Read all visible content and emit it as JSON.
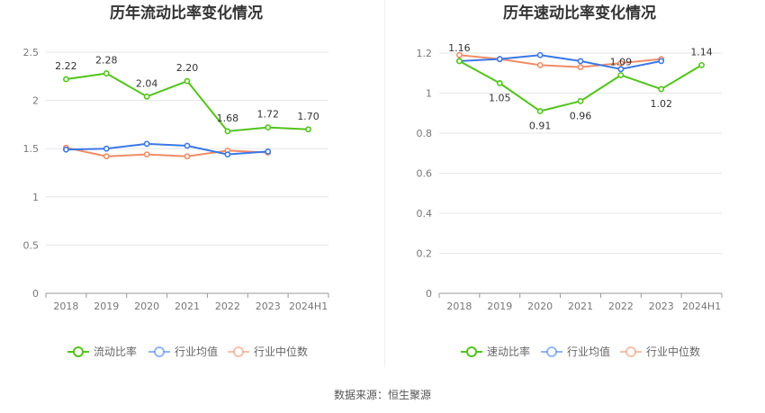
{
  "source_text": "数据来源：恒生聚源",
  "chart_data": [
    {
      "type": "line",
      "title": "历年流动比率变化情况",
      "categories": [
        "2018",
        "2019",
        "2020",
        "2021",
        "2022",
        "2023",
        "2024H1"
      ],
      "ylim": [
        0,
        2.5
      ],
      "yticks": [
        "0",
        "0.5",
        "1",
        "1.5",
        "2",
        "2.5"
      ],
      "grid": true,
      "legend_position": "bottom-center",
      "series": [
        {
          "name": "流动比率",
          "color": "#52c41a",
          "values": [
            2.22,
            2.28,
            2.04,
            2.2,
            1.68,
            1.72,
            1.7
          ],
          "labels": [
            "2.22",
            "2.28",
            "2.04",
            "2.20",
            "1.68",
            "1.72",
            "1.70"
          ]
        },
        {
          "name": "行业均值",
          "color": "#3b78e7",
          "values": [
            1.49,
            1.5,
            1.55,
            1.53,
            1.44,
            1.47,
            null
          ]
        },
        {
          "name": "行业中位数",
          "color": "#f08c66",
          "values": [
            1.51,
            1.42,
            1.44,
            1.42,
            1.48,
            1.46,
            null
          ]
        }
      ]
    },
    {
      "type": "line",
      "title": "历年速动比率变化情况",
      "categories": [
        "2018",
        "2019",
        "2020",
        "2021",
        "2022",
        "2023",
        "2024H1"
      ],
      "ylim": [
        0,
        1.2
      ],
      "yticks": [
        "0",
        "0.2",
        "0.4",
        "0.6",
        "0.8",
        "1",
        "1.2"
      ],
      "grid": true,
      "legend_position": "bottom-center",
      "series": [
        {
          "name": "速动比率",
          "color": "#52c41a",
          "values": [
            1.16,
            1.05,
            0.91,
            0.96,
            1.09,
            1.02,
            1.14
          ],
          "labels": [
            "1.16",
            "1.05",
            "0.91",
            "0.96",
            "1.09",
            "1.02",
            "1.14"
          ]
        },
        {
          "name": "行业均值",
          "color": "#3b78e7",
          "values": [
            1.16,
            1.17,
            1.19,
            1.16,
            1.12,
            1.16,
            null
          ]
        },
        {
          "name": "行业中位数",
          "color": "#f08c66",
          "values": [
            1.19,
            1.17,
            1.14,
            1.13,
            1.15,
            1.17,
            null
          ]
        }
      ]
    }
  ]
}
